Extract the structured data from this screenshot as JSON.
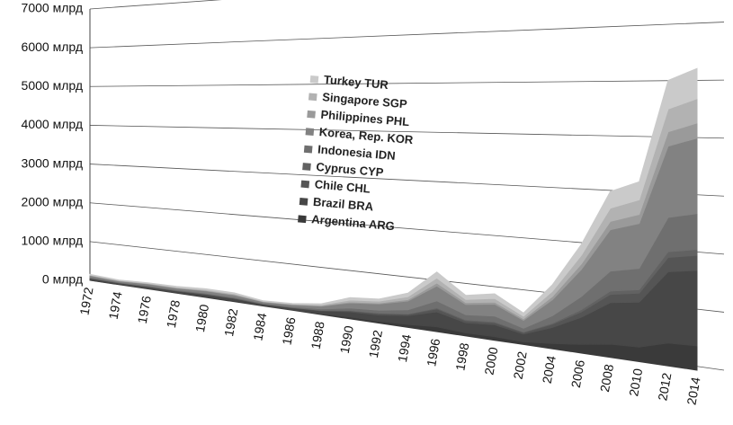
{
  "chart_data": {
    "type": "area",
    "categories": [
      "1972",
      "1974",
      "1976",
      "1978",
      "1980",
      "1982",
      "1984",
      "1986",
      "1988",
      "1990",
      "1992",
      "1994",
      "1996",
      "1998",
      "2000",
      "2002",
      "2004",
      "2006",
      "2008",
      "2010",
      "2012",
      "2014"
    ],
    "series": [
      {
        "name": "Argentina ARG",
        "color": "#3a3a3a",
        "values": [
          10,
          10,
          10,
          10,
          20,
          20,
          10,
          10,
          20,
          40,
          40,
          60,
          100,
          60,
          70,
          50,
          100,
          160,
          240,
          260,
          400,
          420
        ]
      },
      {
        "name": "Brazil BRA",
        "color": "#474747",
        "values": [
          40,
          30,
          40,
          40,
          50,
          50,
          30,
          40,
          60,
          110,
          130,
          180,
          300,
          200,
          230,
          150,
          300,
          500,
          750,
          800,
          1250,
          1300
        ]
      },
      {
        "name": "Chile CHL",
        "color": "#555555",
        "values": [
          10,
          5,
          10,
          10,
          10,
          10,
          5,
          10,
          10,
          20,
          30,
          30,
          60,
          40,
          40,
          30,
          60,
          100,
          150,
          160,
          250,
          260
        ]
      },
      {
        "name": "Cyprus CYP",
        "color": "#626262",
        "values": [
          2,
          2,
          2,
          2,
          4,
          4,
          2,
          2,
          4,
          10,
          10,
          10,
          20,
          20,
          20,
          10,
          20,
          40,
          60,
          60,
          100,
          100
        ]
      },
      {
        "name": "Indonesia IDN",
        "color": "#6f6f6f",
        "values": [
          20,
          15,
          20,
          20,
          20,
          20,
          15,
          20,
          30,
          50,
          60,
          80,
          140,
          100,
          110,
          70,
          140,
          240,
          360,
          380,
          600,
          620
        ]
      },
      {
        "name": "Korea, Rep. KOR",
        "color": "#828282",
        "values": [
          40,
          30,
          40,
          40,
          50,
          50,
          30,
          40,
          60,
          110,
          130,
          180,
          300,
          200,
          230,
          150,
          300,
          500,
          750,
          800,
          1250,
          1300
        ]
      },
      {
        "name": "Philippines PHL",
        "color": "#9a9a9a",
        "values": [
          10,
          5,
          10,
          10,
          10,
          10,
          5,
          10,
          10,
          20,
          20,
          30,
          60,
          40,
          40,
          30,
          60,
          100,
          150,
          160,
          250,
          260
        ]
      },
      {
        "name": "Singapore SGP",
        "color": "#b2b2b2",
        "values": [
          10,
          10,
          10,
          10,
          20,
          20,
          10,
          10,
          20,
          40,
          40,
          60,
          100,
          60,
          70,
          50,
          100,
          160,
          240,
          260,
          400,
          420
        ]
      },
      {
        "name": "Turkey TUR",
        "color": "#cacaca",
        "values": [
          10,
          10,
          10,
          20,
          20,
          20,
          10,
          10,
          20,
          50,
          40,
          70,
          120,
          80,
          90,
          60,
          120,
          200,
          300,
          320,
          500,
          520
        ]
      }
    ],
    "ylim": [
      0,
      7000
    ],
    "yticks": [
      {
        "value": 0,
        "label": "0 млрд"
      },
      {
        "value": 1000,
        "label": "1000 млрд"
      },
      {
        "value": 2000,
        "label": "2000 млрд"
      },
      {
        "value": 3000,
        "label": "3000 млрд"
      },
      {
        "value": 4000,
        "label": "4000 млрд"
      },
      {
        "value": 5000,
        "label": "5000 млрд"
      },
      {
        "value": 6000,
        "label": "6000 млрд"
      },
      {
        "value": 7000,
        "label": "7000 млрд"
      }
    ],
    "grid": true,
    "stacked": true
  }
}
